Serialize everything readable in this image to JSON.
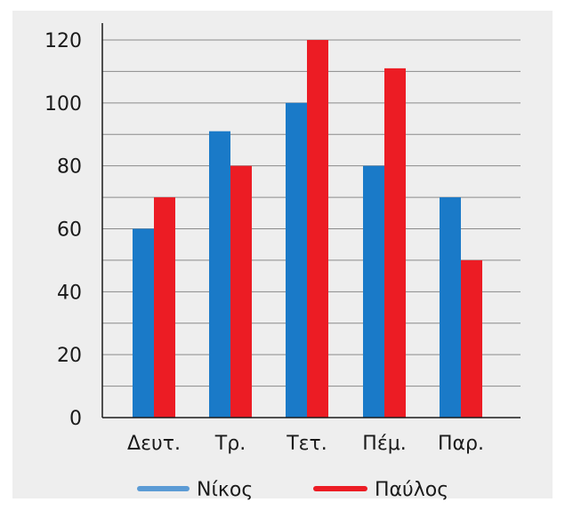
{
  "chart_data": {
    "type": "bar",
    "title": "",
    "xlabel": "",
    "ylabel": "",
    "categories": [
      "Δευτ.",
      "Τρ.",
      "Τετ.",
      "Πέμ.",
      "Παρ."
    ],
    "series": [
      {
        "name": "Νίκος",
        "values": [
          60,
          91,
          100,
          80,
          70
        ],
        "color": "#1a7ac8"
      },
      {
        "name": "Παύλος",
        "values": [
          70,
          80,
          120,
          111,
          50
        ],
        "color": "#ec1c24"
      }
    ],
    "ylim": [
      0,
      120
    ],
    "yticks": [
      0,
      20,
      40,
      60,
      80,
      100,
      120
    ],
    "grid": true,
    "legend_position": "bottom",
    "legend_line_colors": [
      "#5b9bd5",
      "#ec1c24"
    ]
  }
}
